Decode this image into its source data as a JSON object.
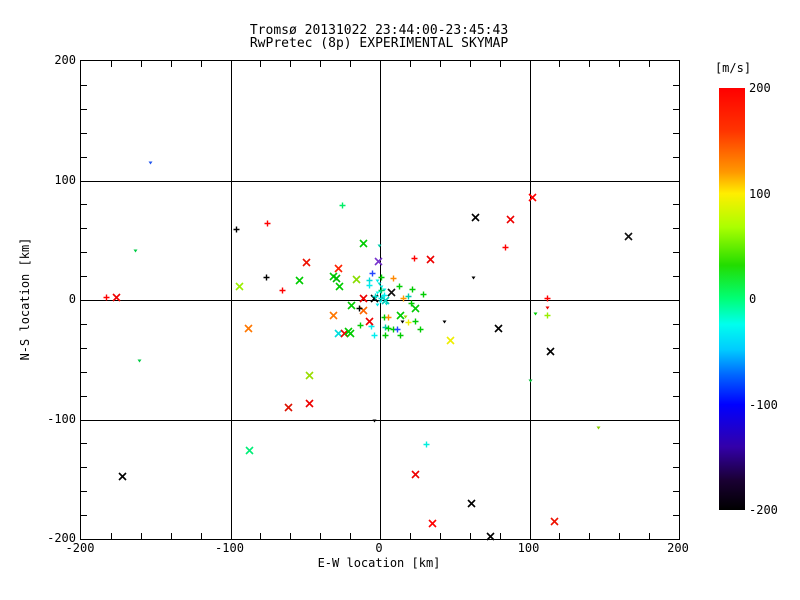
{
  "page": {
    "background": "#ffffff",
    "frame_color": "#000000"
  },
  "chart_data": {
    "type": "scatter",
    "title": "Tromsø 20131022 23:44:00-23:45:43",
    "subtitle": "RwPretec (8p) EXPERIMENTAL SKYMAP",
    "xlabel": "E-W location [km]",
    "ylabel": "N-S location [km]",
    "xlim": [
      -200,
      200
    ],
    "ylim": [
      -200,
      200
    ],
    "grid": true,
    "grid_values": [
      -100,
      0,
      100
    ],
    "minor_tick_step": 20,
    "x_ticks": {
      "values": [
        -200,
        -100,
        0,
        100,
        200
      ],
      "labels": [
        "-200",
        "-100",
        "0",
        "100",
        "200"
      ]
    },
    "y_ticks": {
      "values": [
        200,
        100,
        0,
        -100,
        -200
      ],
      "labels": [
        "200",
        "100",
        "0",
        "-100",
        "-200"
      ]
    },
    "colorbar": {
      "label": "[m/s]",
      "min": -200,
      "max": 200,
      "tick_values": [
        200,
        100,
        0,
        -100,
        -200
      ],
      "tick_labels": [
        "200",
        "100",
        "0",
        "-100",
        "-200"
      ],
      "gradient_stops": [
        {
          "pos": 0.0,
          "color": "#ff0000"
        },
        {
          "pos": 0.1,
          "color": "#ff3300"
        },
        {
          "pos": 0.2,
          "color": "#ff9900"
        },
        {
          "pos": 0.25,
          "color": "#ffee00"
        },
        {
          "pos": 0.33,
          "color": "#aaff00"
        },
        {
          "pos": 0.42,
          "color": "#22dd00"
        },
        {
          "pos": 0.5,
          "color": "#00ff77"
        },
        {
          "pos": 0.56,
          "color": "#00ffee"
        },
        {
          "pos": 0.62,
          "color": "#00ccff"
        },
        {
          "pos": 0.68,
          "color": "#0066ff"
        },
        {
          "pos": 0.75,
          "color": "#0000ff"
        },
        {
          "pos": 0.85,
          "color": "#3300aa"
        },
        {
          "pos": 0.93,
          "color": "#1a0033"
        },
        {
          "pos": 1.0,
          "color": "#000000"
        }
      ]
    },
    "marker_types": {
      "x": "cross",
      "p": "plus",
      "d": "small-dot"
    },
    "points": [
      {
        "x": -154,
        "y": 115,
        "c": "#2255ee",
        "m": "d"
      },
      {
        "x": -164,
        "y": 41,
        "c": "#00cc44",
        "m": "d"
      },
      {
        "x": -183,
        "y": 2,
        "c": "#ff0000",
        "m": "p"
      },
      {
        "x": -176,
        "y": 2,
        "c": "#ee0000",
        "m": "x"
      },
      {
        "x": -96,
        "y": 59,
        "c": "#000000",
        "m": "p"
      },
      {
        "x": -75,
        "y": 64,
        "c": "#ff0000",
        "m": "p"
      },
      {
        "x": -25,
        "y": 79,
        "c": "#00ee66",
        "m": "p"
      },
      {
        "x": -11,
        "y": 47,
        "c": "#00cc00",
        "m": "x"
      },
      {
        "x": -1,
        "y": 45,
        "c": "#00ccaa",
        "m": "d"
      },
      {
        "x": -1,
        "y": 32,
        "c": "#7733cc",
        "m": "x"
      },
      {
        "x": -49,
        "y": 31,
        "c": "#ee1100",
        "m": "x"
      },
      {
        "x": -28,
        "y": 26,
        "c": "#ff2200",
        "m": "x"
      },
      {
        "x": -76,
        "y": 19,
        "c": "#000000",
        "m": "p"
      },
      {
        "x": -54,
        "y": 16,
        "c": "#00cc00",
        "m": "x"
      },
      {
        "x": -31,
        "y": 20,
        "c": "#00cc00",
        "m": "x"
      },
      {
        "x": -29,
        "y": 18,
        "c": "#00bb00",
        "m": "x"
      },
      {
        "x": -27,
        "y": 11,
        "c": "#00cc00",
        "m": "x"
      },
      {
        "x": -16,
        "y": 17,
        "c": "#88dd00",
        "m": "x"
      },
      {
        "x": -94,
        "y": 11,
        "c": "#99ee00",
        "m": "x"
      },
      {
        "x": -65,
        "y": 8,
        "c": "#ff0000",
        "m": "p"
      },
      {
        "x": -5,
        "y": 22,
        "c": "#2244ff",
        "m": "p"
      },
      {
        "x": 102,
        "y": 86,
        "c": "#ff0000",
        "m": "x"
      },
      {
        "x": 64,
        "y": 69,
        "c": "#000000",
        "m": "x"
      },
      {
        "x": 87,
        "y": 67,
        "c": "#ee0000",
        "m": "x"
      },
      {
        "x": 166,
        "y": 53,
        "c": "#111111",
        "m": "x"
      },
      {
        "x": 84,
        "y": 44,
        "c": "#ff0000",
        "m": "p"
      },
      {
        "x": 34,
        "y": 34,
        "c": "#ee0000",
        "m": "x"
      },
      {
        "x": 23,
        "y": 35,
        "c": "#ff0000",
        "m": "p"
      },
      {
        "x": 62,
        "y": 18,
        "c": "#000000",
        "m": "d"
      },
      {
        "x": 112,
        "y": 1,
        "c": "#ff0000",
        "m": "p"
      },
      {
        "x": -88,
        "y": -24,
        "c": "#ff7700",
        "m": "x"
      },
      {
        "x": -161,
        "y": -51,
        "c": "#00cc44",
        "m": "d"
      },
      {
        "x": -28,
        "y": -28,
        "c": "#00dddd",
        "m": "x"
      },
      {
        "x": -24,
        "y": -28,
        "c": "#ee0000",
        "m": "x"
      },
      {
        "x": -20,
        "y": -28,
        "c": "#00cc00",
        "m": "x"
      },
      {
        "x": -47,
        "y": -63,
        "c": "#99dd00",
        "m": "x"
      },
      {
        "x": -47,
        "y": -87,
        "c": "#ee0000",
        "m": "x"
      },
      {
        "x": -61,
        "y": -90,
        "c": "#dd1100",
        "m": "x"
      },
      {
        "x": -87,
        "y": -126,
        "c": "#00ee77",
        "m": "x"
      },
      {
        "x": -172,
        "y": -148,
        "c": "#000000",
        "m": "x"
      },
      {
        "x": -4,
        "y": -101,
        "c": "#000000",
        "m": "d"
      },
      {
        "x": 79,
        "y": -24,
        "c": "#000000",
        "m": "x"
      },
      {
        "x": 47,
        "y": -34,
        "c": "#eeee00",
        "m": "x"
      },
      {
        "x": 114,
        "y": -43,
        "c": "#000000",
        "m": "x"
      },
      {
        "x": 43,
        "y": -18,
        "c": "#000000",
        "m": "d"
      },
      {
        "x": 112,
        "y": -7,
        "c": "#ee0000",
        "m": "d"
      },
      {
        "x": 112,
        "y": -13,
        "c": "#99ee00",
        "m": "p"
      },
      {
        "x": 104,
        "y": -12,
        "c": "#00cc00",
        "m": "d"
      },
      {
        "x": 100,
        "y": -68,
        "c": "#00bb33",
        "m": "d"
      },
      {
        "x": 146,
        "y": -107,
        "c": "#88cc00",
        "m": "d"
      },
      {
        "x": 31,
        "y": -121,
        "c": "#00eedd",
        "m": "p"
      },
      {
        "x": 24,
        "y": -146,
        "c": "#ee0000",
        "m": "x"
      },
      {
        "x": 61,
        "y": -170,
        "c": "#000000",
        "m": "x"
      },
      {
        "x": 35,
        "y": -187,
        "c": "#ff0000",
        "m": "x"
      },
      {
        "x": 74,
        "y": -198,
        "c": "#000000",
        "m": "x"
      },
      {
        "x": 117,
        "y": -185,
        "c": "#ee1100",
        "m": "x"
      },
      {
        "x": 1,
        "y": 19,
        "c": "#00cc00",
        "m": "p"
      },
      {
        "x": 9,
        "y": 18,
        "c": "#ff8800",
        "m": "p"
      },
      {
        "x": -7,
        "y": 16,
        "c": "#00dddd",
        "m": "p"
      },
      {
        "x": -7,
        "y": 12,
        "c": "#00eeee",
        "m": "p"
      },
      {
        "x": 13,
        "y": 11,
        "c": "#00cc00",
        "m": "p"
      },
      {
        "x": 22,
        "y": 9,
        "c": "#00cc00",
        "m": "p"
      },
      {
        "x": 19,
        "y": 3,
        "c": "#00ccaa",
        "m": "p"
      },
      {
        "x": 29,
        "y": 5,
        "c": "#00cc00",
        "m": "p"
      },
      {
        "x": -11,
        "y": 1,
        "c": "#ee0000",
        "m": "x"
      },
      {
        "x": -4,
        "y": 1,
        "c": "#000000",
        "m": "x"
      },
      {
        "x": 8,
        "y": 6,
        "c": "#111111",
        "m": "x"
      },
      {
        "x": 16,
        "y": 1,
        "c": "#ff9900",
        "m": "p"
      },
      {
        "x": 21,
        "y": -3,
        "c": "#00cc00",
        "m": "p"
      },
      {
        "x": -31,
        "y": -13,
        "c": "#ff7700",
        "m": "x"
      },
      {
        "x": -11,
        "y": -9,
        "c": "#ff6600",
        "m": "x"
      },
      {
        "x": -14,
        "y": -7,
        "c": "#000000",
        "m": "p"
      },
      {
        "x": -19,
        "y": -5,
        "c": "#00cc00",
        "m": "x"
      },
      {
        "x": 14,
        "y": -13,
        "c": "#00cc00",
        "m": "x"
      },
      {
        "x": 24,
        "y": -7,
        "c": "#00cc00",
        "m": "x"
      },
      {
        "x": 19,
        "y": -19,
        "c": "#eeee00",
        "m": "p"
      },
      {
        "x": -6,
        "y": -22,
        "c": "#00eeee",
        "m": "p"
      },
      {
        "x": -7,
        "y": -18,
        "c": "#ee0000",
        "m": "x"
      },
      {
        "x": 3,
        "y": -15,
        "c": "#00cc00",
        "m": "p"
      },
      {
        "x": 4,
        "y": -23,
        "c": "#00ccaa",
        "m": "p"
      },
      {
        "x": 6,
        "y": -15,
        "c": "#ff8800",
        "m": "p"
      },
      {
        "x": 15,
        "y": -18,
        "c": "#000000",
        "m": "d"
      },
      {
        "x": 6,
        "y": -24,
        "c": "#00cc00",
        "m": "p"
      },
      {
        "x": 9,
        "y": -25,
        "c": "#00cc00",
        "m": "p"
      },
      {
        "x": 12,
        "y": -25,
        "c": "#2244ff",
        "m": "p"
      },
      {
        "x": 27,
        "y": -25,
        "c": "#00cc00",
        "m": "p"
      },
      {
        "x": -21,
        "y": -26,
        "c": "#00cc00",
        "m": "x"
      },
      {
        "x": -13,
        "y": -21,
        "c": "#00cc00",
        "m": "p"
      },
      {
        "x": 17,
        "y": -14,
        "c": "#99dd00",
        "m": "d"
      },
      {
        "x": 24,
        "y": -18,
        "c": "#00cc00",
        "m": "p"
      },
      {
        "x": 14,
        "y": -30,
        "c": "#00cc00",
        "m": "p"
      },
      {
        "x": -4,
        "y": -30,
        "c": "#00eeee",
        "m": "p"
      },
      {
        "x": 4,
        "y": -30,
        "c": "#00cc00",
        "m": "p"
      },
      {
        "x": -2,
        "y": 16,
        "c": "#00eeee",
        "m": "d"
      },
      {
        "x": -1,
        "y": 13,
        "c": "#00ddcc",
        "m": "d"
      },
      {
        "x": 1,
        "y": 11,
        "c": "#00eeee",
        "m": "d"
      },
      {
        "x": 0,
        "y": 7,
        "c": "#00ddcc",
        "m": "d"
      },
      {
        "x": 3,
        "y": 8,
        "c": "#00eeee",
        "m": "d"
      },
      {
        "x": -2,
        "y": 6,
        "c": "#00ffee",
        "m": "d"
      },
      {
        "x": 2,
        "y": 3,
        "c": "#00eedd",
        "m": "d"
      },
      {
        "x": 0,
        "y": -2,
        "c": "#00eeee",
        "m": "d"
      },
      {
        "x": 4,
        "y": -3,
        "c": "#00ddcc",
        "m": "d"
      },
      {
        "x": -2,
        "y": -4,
        "c": "#00eeee",
        "m": "d"
      },
      {
        "x": 1,
        "y": 8,
        "c": "#00cc66",
        "m": "p"
      },
      {
        "x": 1,
        "y": 1,
        "c": "#00dddd",
        "m": "p"
      },
      {
        "x": 4,
        "y": 0,
        "c": "#00ccbb",
        "m": "x"
      },
      {
        "x": 3,
        "y": 4,
        "c": "#00eeee",
        "m": "p"
      },
      {
        "x": -3,
        "y": 3,
        "c": "#00ddcc",
        "m": "p"
      }
    ]
  }
}
